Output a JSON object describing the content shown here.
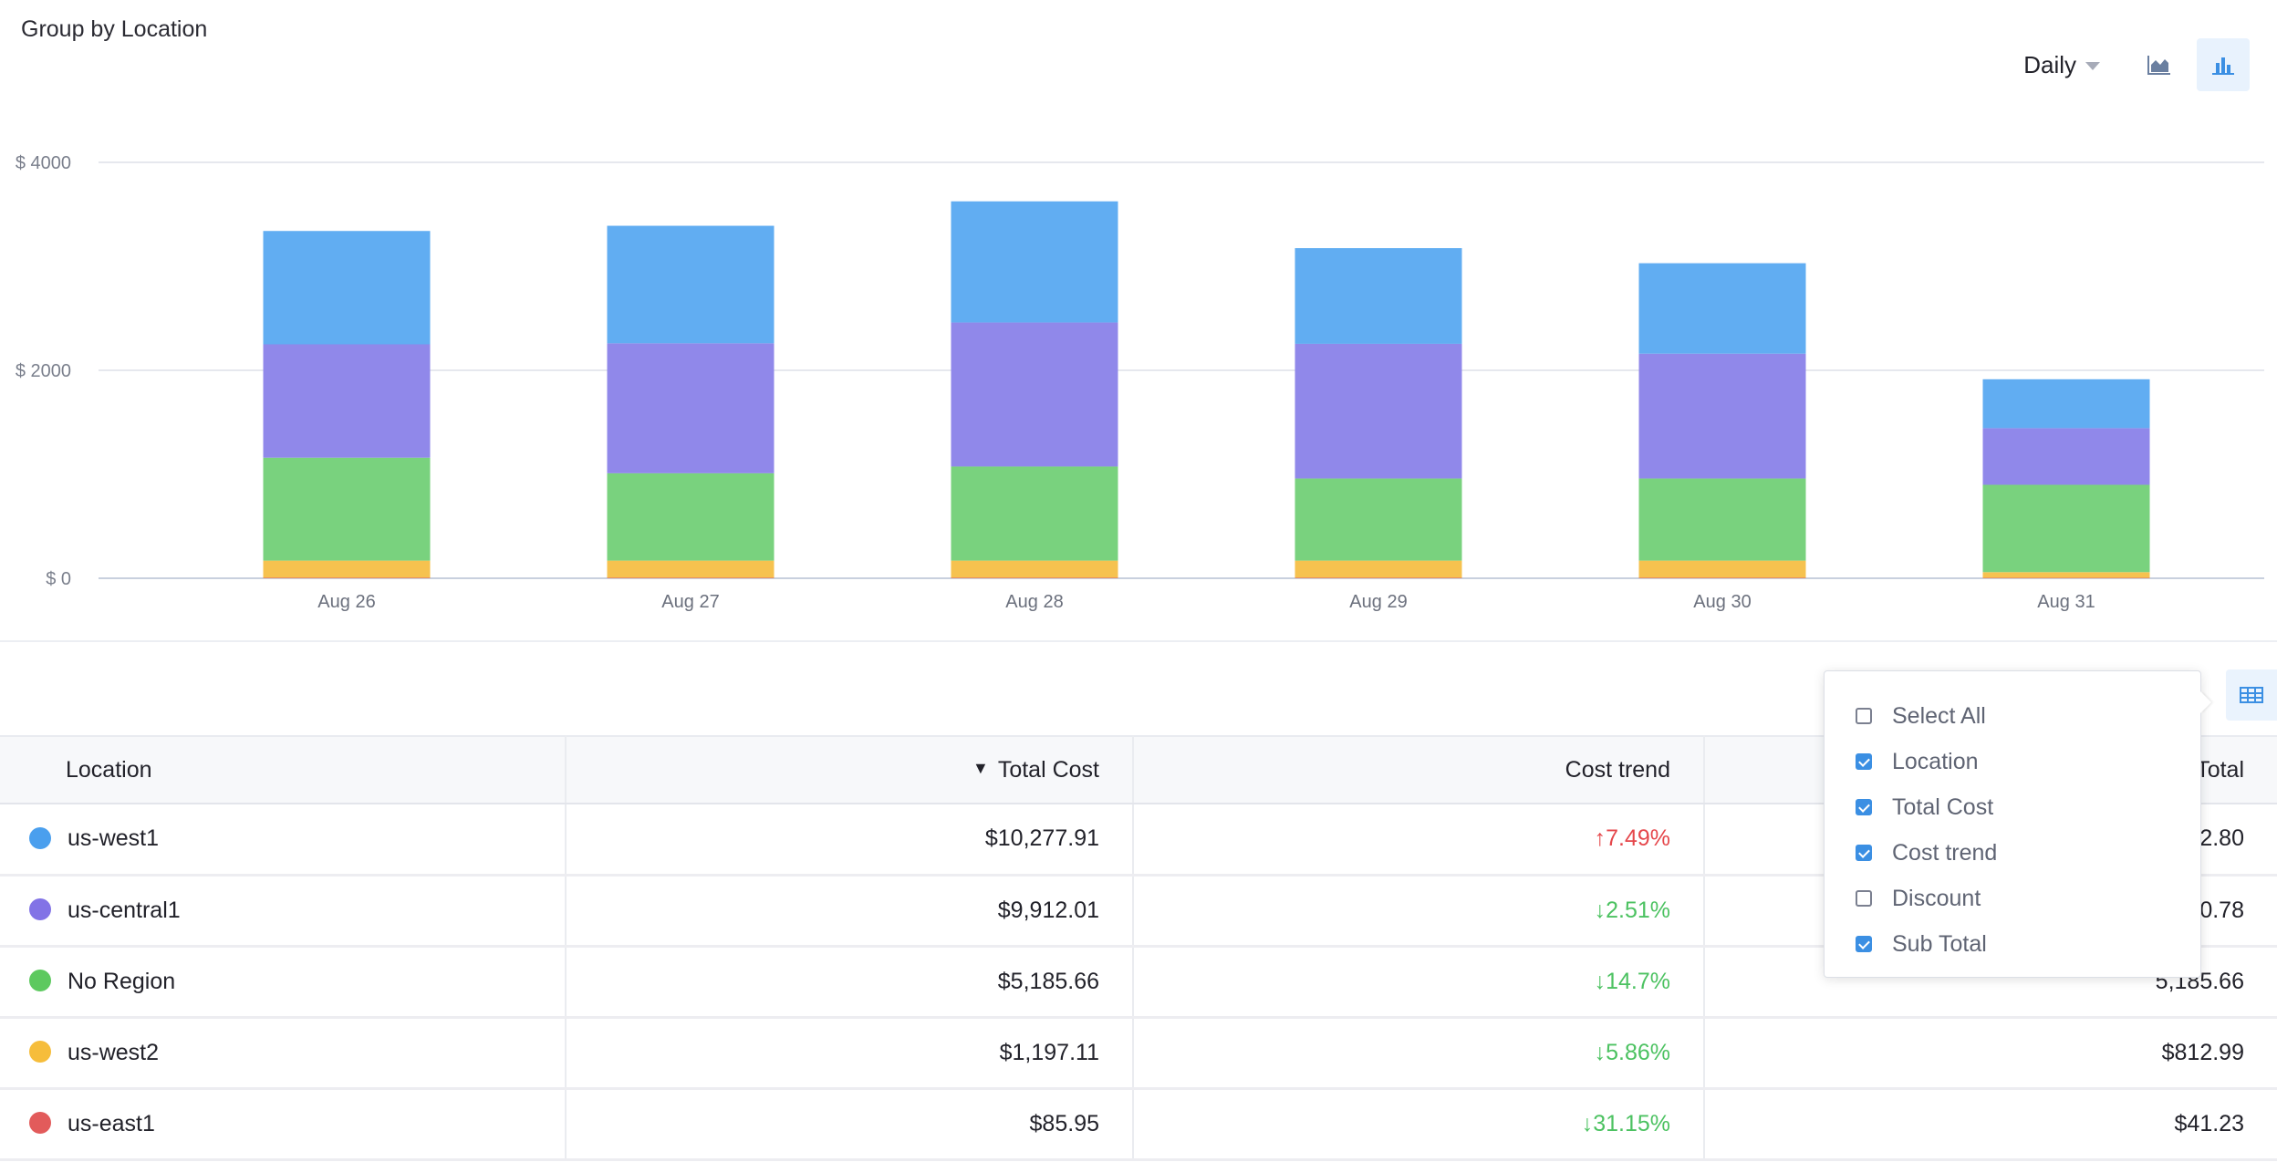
{
  "title": "Group by Location",
  "toolbar": {
    "interval": "Daily",
    "area_chart_icon": "area-chart-icon",
    "bar_chart_icon": "bar-chart-icon",
    "active_view": "bar"
  },
  "chart_data": {
    "type": "bar",
    "stacked": true,
    "categories": [
      "Aug 26",
      "Aug 27",
      "Aug 28",
      "Aug 29",
      "Aug 30",
      "Aug 31"
    ],
    "y_ticks": [
      "$ 0",
      "$ 2000",
      "$ 4000"
    ],
    "ylim": [
      0,
      4000
    ],
    "grid": true,
    "series": [
      {
        "name": "us-east1",
        "color": "#e06060",
        "values": [
          5,
          5,
          5,
          5,
          5,
          4
        ]
      },
      {
        "name": "us-west2",
        "color": "#f6c24f",
        "values": [
          165,
          165,
          165,
          165,
          165,
          55
        ]
      },
      {
        "name": "No Region",
        "color": "#79d27e",
        "values": [
          990,
          840,
          905,
          790,
          790,
          840
        ]
      },
      {
        "name": "us-central1",
        "color": "#9088ea",
        "values": [
          1090,
          1250,
          1385,
          1295,
          1200,
          545
        ]
      },
      {
        "name": "us-west1",
        "color": "#61adf2",
        "values": [
          1090,
          1130,
          1165,
          920,
          870,
          470
        ]
      }
    ]
  },
  "columns_button_icon": "table-columns-icon",
  "table": {
    "headers": {
      "location": "Location",
      "total_cost": "Total Cost",
      "cost_trend": "Cost trend",
      "sub_total": "Total"
    },
    "sort_indicator": "▼",
    "rows": [
      {
        "location": "us-west1",
        "color": "#4a9fee",
        "total_cost": "$10,277.91",
        "trend": "↑7.49%",
        "trend_dir": "up",
        "sub_total": "2.80"
      },
      {
        "location": "us-central1",
        "color": "#8273e6",
        "total_cost": "$9,912.01",
        "trend": "↓2.51%",
        "trend_dir": "down",
        "sub_total": "0.78"
      },
      {
        "location": "No Region",
        "color": "#5dc95f",
        "total_cost": "$5,185.66",
        "trend": "↓14.7%",
        "trend_dir": "down",
        "sub_total": "5,185.66"
      },
      {
        "location": "us-west2",
        "color": "#f6bd3b",
        "total_cost": "$1,197.11",
        "trend": "↓5.86%",
        "trend_dir": "down",
        "sub_total": "$812.99"
      },
      {
        "location": "us-east1",
        "color": "#e25b5b",
        "total_cost": "$85.95",
        "trend": "↓31.15%",
        "trend_dir": "down",
        "sub_total": "$41.23"
      }
    ]
  },
  "column_picker": {
    "options": [
      {
        "label": "Select All",
        "checked": false
      },
      {
        "label": "Location",
        "checked": true
      },
      {
        "label": "Total Cost",
        "checked": true
      },
      {
        "label": "Cost trend",
        "checked": true
      },
      {
        "label": "Discount",
        "checked": false
      },
      {
        "label": "Sub Total",
        "checked": true
      }
    ]
  }
}
